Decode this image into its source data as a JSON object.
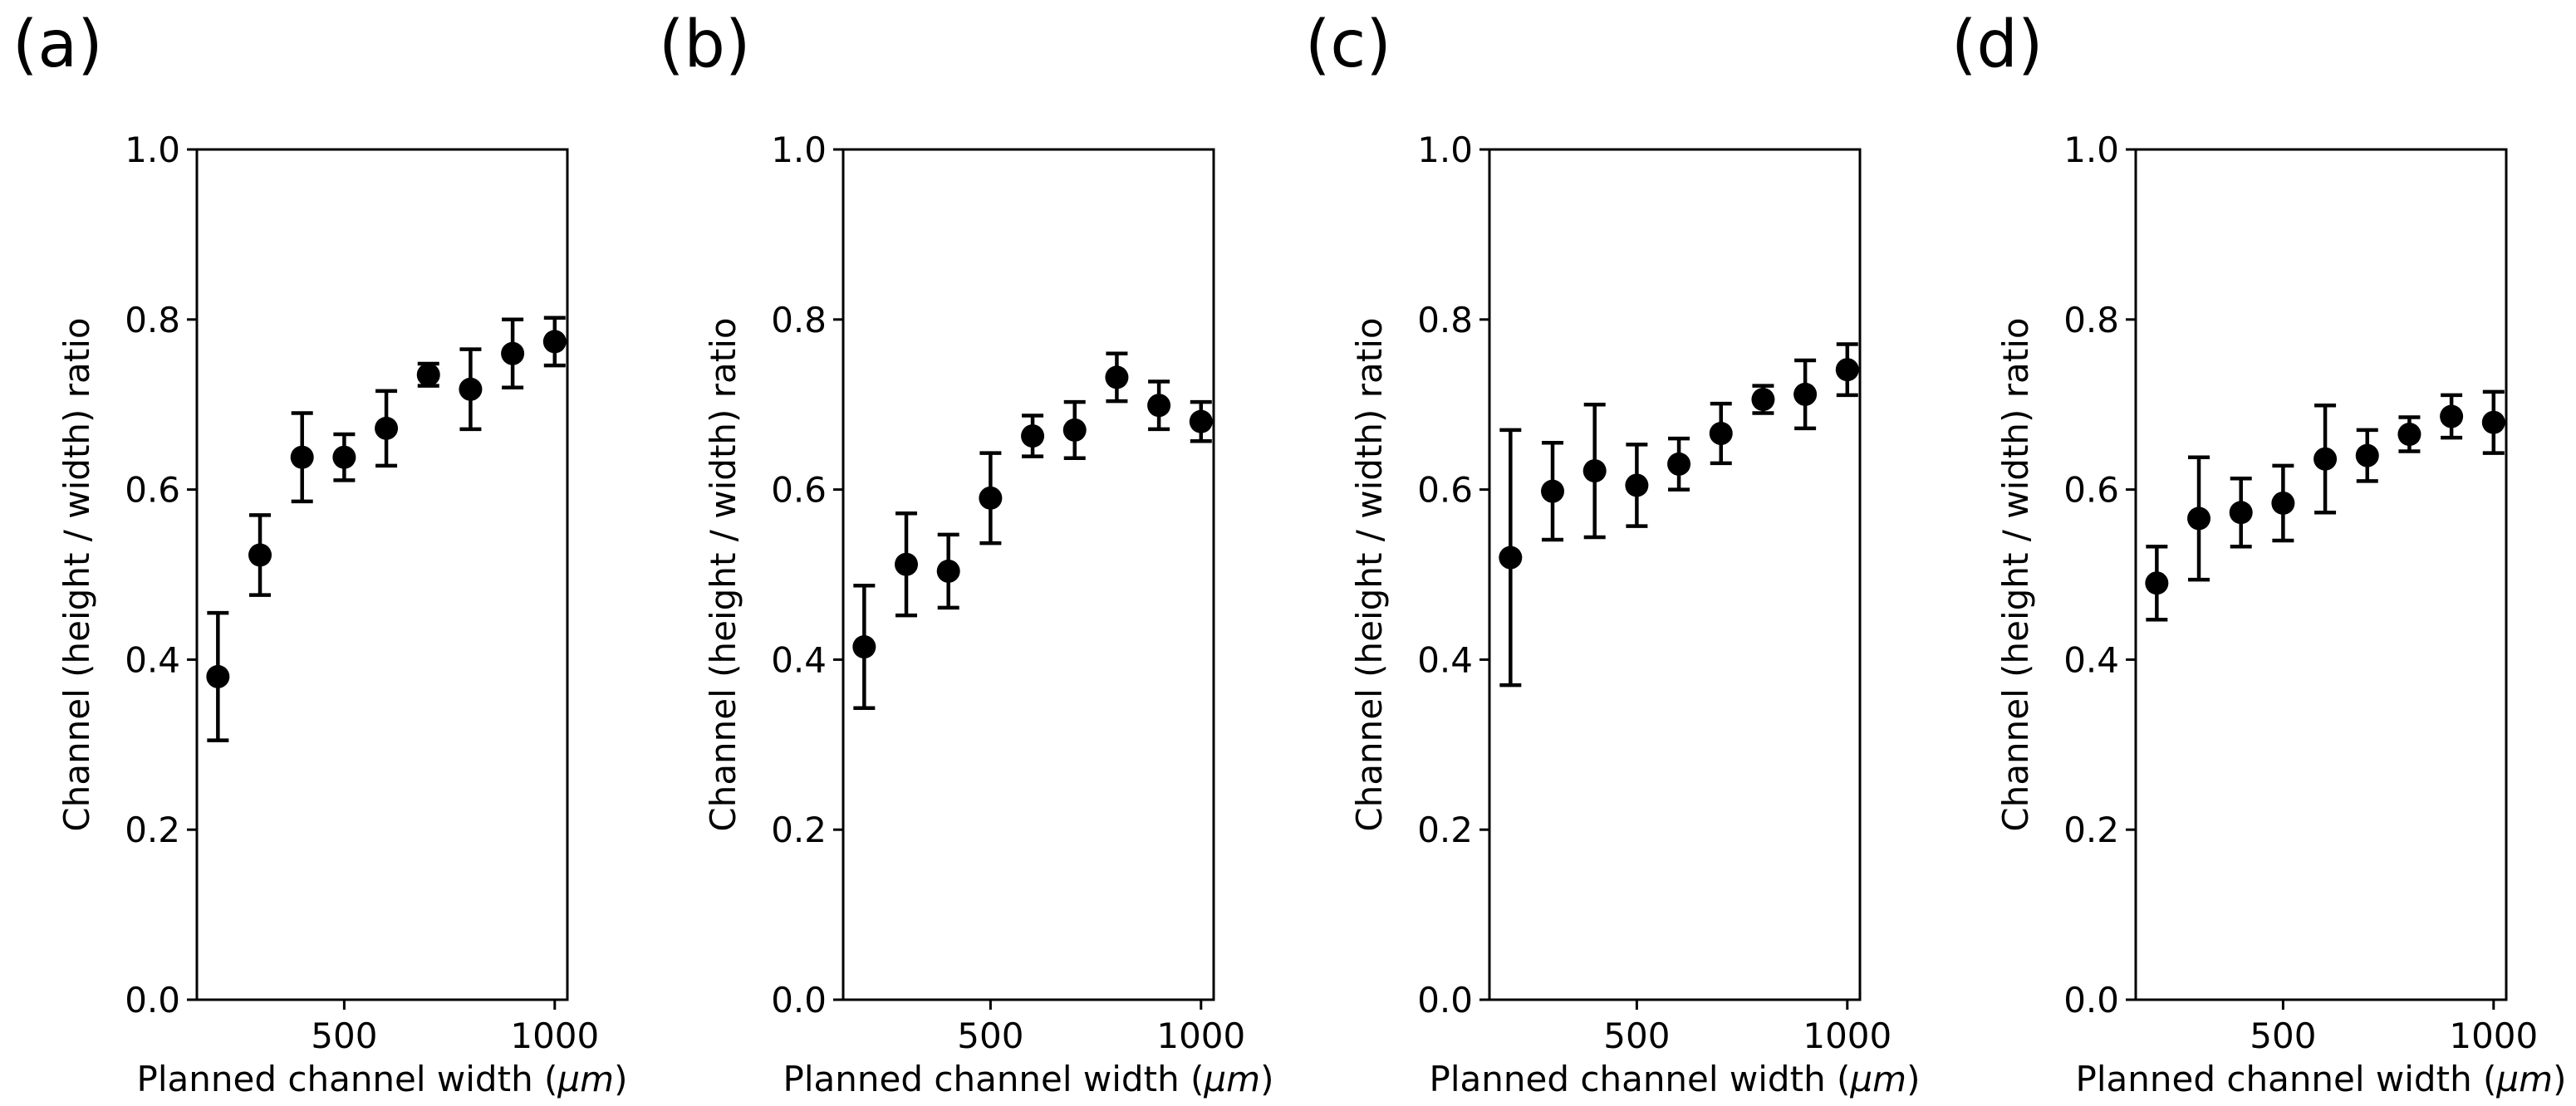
{
  "chart_data": [
    {
      "type": "scatter",
      "panel_label": "(a)",
      "xlabel_main": "Planned channel width (",
      "xlabel_unit": "μm",
      "xlabel_end": ")",
      "ylabel": "Channel (height / width) ratio",
      "xlim": [
        150,
        1030
      ],
      "ylim": [
        0.0,
        1.0
      ],
      "xticks": [
        500,
        1000
      ],
      "xtick_labels": [
        "500",
        "1000"
      ],
      "yticks": [
        0.0,
        0.2,
        0.4,
        0.6,
        0.8,
        1.0
      ],
      "ytick_labels": [
        "0.0",
        "0.2",
        "0.4",
        "0.6",
        "0.8",
        "1.0"
      ],
      "x": [
        200,
        300,
        400,
        500,
        600,
        700,
        800,
        900,
        1000
      ],
      "y": [
        0.38,
        0.523,
        0.638,
        0.638,
        0.672,
        0.735,
        0.718,
        0.76,
        0.774
      ],
      "yerr": [
        0.075,
        0.047,
        0.052,
        0.027,
        0.044,
        0.013,
        0.047,
        0.04,
        0.028
      ],
      "marker_color": "#000000"
    },
    {
      "type": "scatter",
      "panel_label": "(b)",
      "xlabel_main": "Planned channel width (",
      "xlabel_unit": "μm",
      "xlabel_end": ")",
      "ylabel": "Channel (height / width) ratio",
      "xlim": [
        150,
        1030
      ],
      "ylim": [
        0.0,
        1.0
      ],
      "xticks": [
        500,
        1000
      ],
      "xtick_labels": [
        "500",
        "1000"
      ],
      "yticks": [
        0.0,
        0.2,
        0.4,
        0.6,
        0.8,
        1.0
      ],
      "ytick_labels": [
        "0.0",
        "0.2",
        "0.4",
        "0.6",
        "0.8",
        "1.0"
      ],
      "x": [
        200,
        300,
        400,
        500,
        600,
        700,
        800,
        900,
        1000
      ],
      "y": [
        0.415,
        0.512,
        0.504,
        0.59,
        0.663,
        0.67,
        0.732,
        0.699,
        0.68
      ],
      "yerr": [
        0.072,
        0.06,
        0.043,
        0.053,
        0.024,
        0.033,
        0.028,
        0.028,
        0.023
      ],
      "marker_color": "#000000"
    },
    {
      "type": "scatter",
      "panel_label": "(c)",
      "xlabel_main": "Planned channel width (",
      "xlabel_unit": "μm",
      "xlabel_end": ")",
      "ylabel": "Channel (height / width) ratio",
      "xlim": [
        150,
        1030
      ],
      "ylim": [
        0.0,
        1.0
      ],
      "xticks": [
        500,
        1000
      ],
      "xtick_labels": [
        "500",
        "1000"
      ],
      "yticks": [
        0.0,
        0.2,
        0.4,
        0.6,
        0.8,
        1.0
      ],
      "ytick_labels": [
        "0.0",
        "0.2",
        "0.4",
        "0.6",
        "0.8",
        "1.0"
      ],
      "x": [
        200,
        300,
        400,
        500,
        600,
        700,
        800,
        900,
        1000
      ],
      "y": [
        0.52,
        0.598,
        0.622,
        0.605,
        0.63,
        0.666,
        0.706,
        0.712,
        0.741
      ],
      "yerr": [
        0.15,
        0.057,
        0.078,
        0.048,
        0.03,
        0.035,
        0.016,
        0.04,
        0.03
      ],
      "marker_color": "#000000"
    },
    {
      "type": "scatter",
      "panel_label": "(d)",
      "xlabel_main": "Planned channel width (",
      "xlabel_unit": "μm",
      "xlabel_end": ")",
      "ylabel": "Channel (height / width) ratio",
      "xlim": [
        150,
        1030
      ],
      "ylim": [
        0.0,
        1.0
      ],
      "xticks": [
        500,
        1000
      ],
      "xtick_labels": [
        "500",
        "1000"
      ],
      "yticks": [
        0.0,
        0.2,
        0.4,
        0.6,
        0.8,
        1.0
      ],
      "ytick_labels": [
        "0.0",
        "0.2",
        "0.4",
        "0.6",
        "0.8",
        "1.0"
      ],
      "x": [
        200,
        300,
        400,
        500,
        600,
        700,
        800,
        900,
        1000
      ],
      "y": [
        0.49,
        0.566,
        0.573,
        0.584,
        0.636,
        0.64,
        0.665,
        0.686,
        0.679
      ],
      "yerr": [
        0.043,
        0.072,
        0.04,
        0.044,
        0.063,
        0.03,
        0.02,
        0.025,
        0.036
      ],
      "marker_color": "#000000"
    }
  ]
}
